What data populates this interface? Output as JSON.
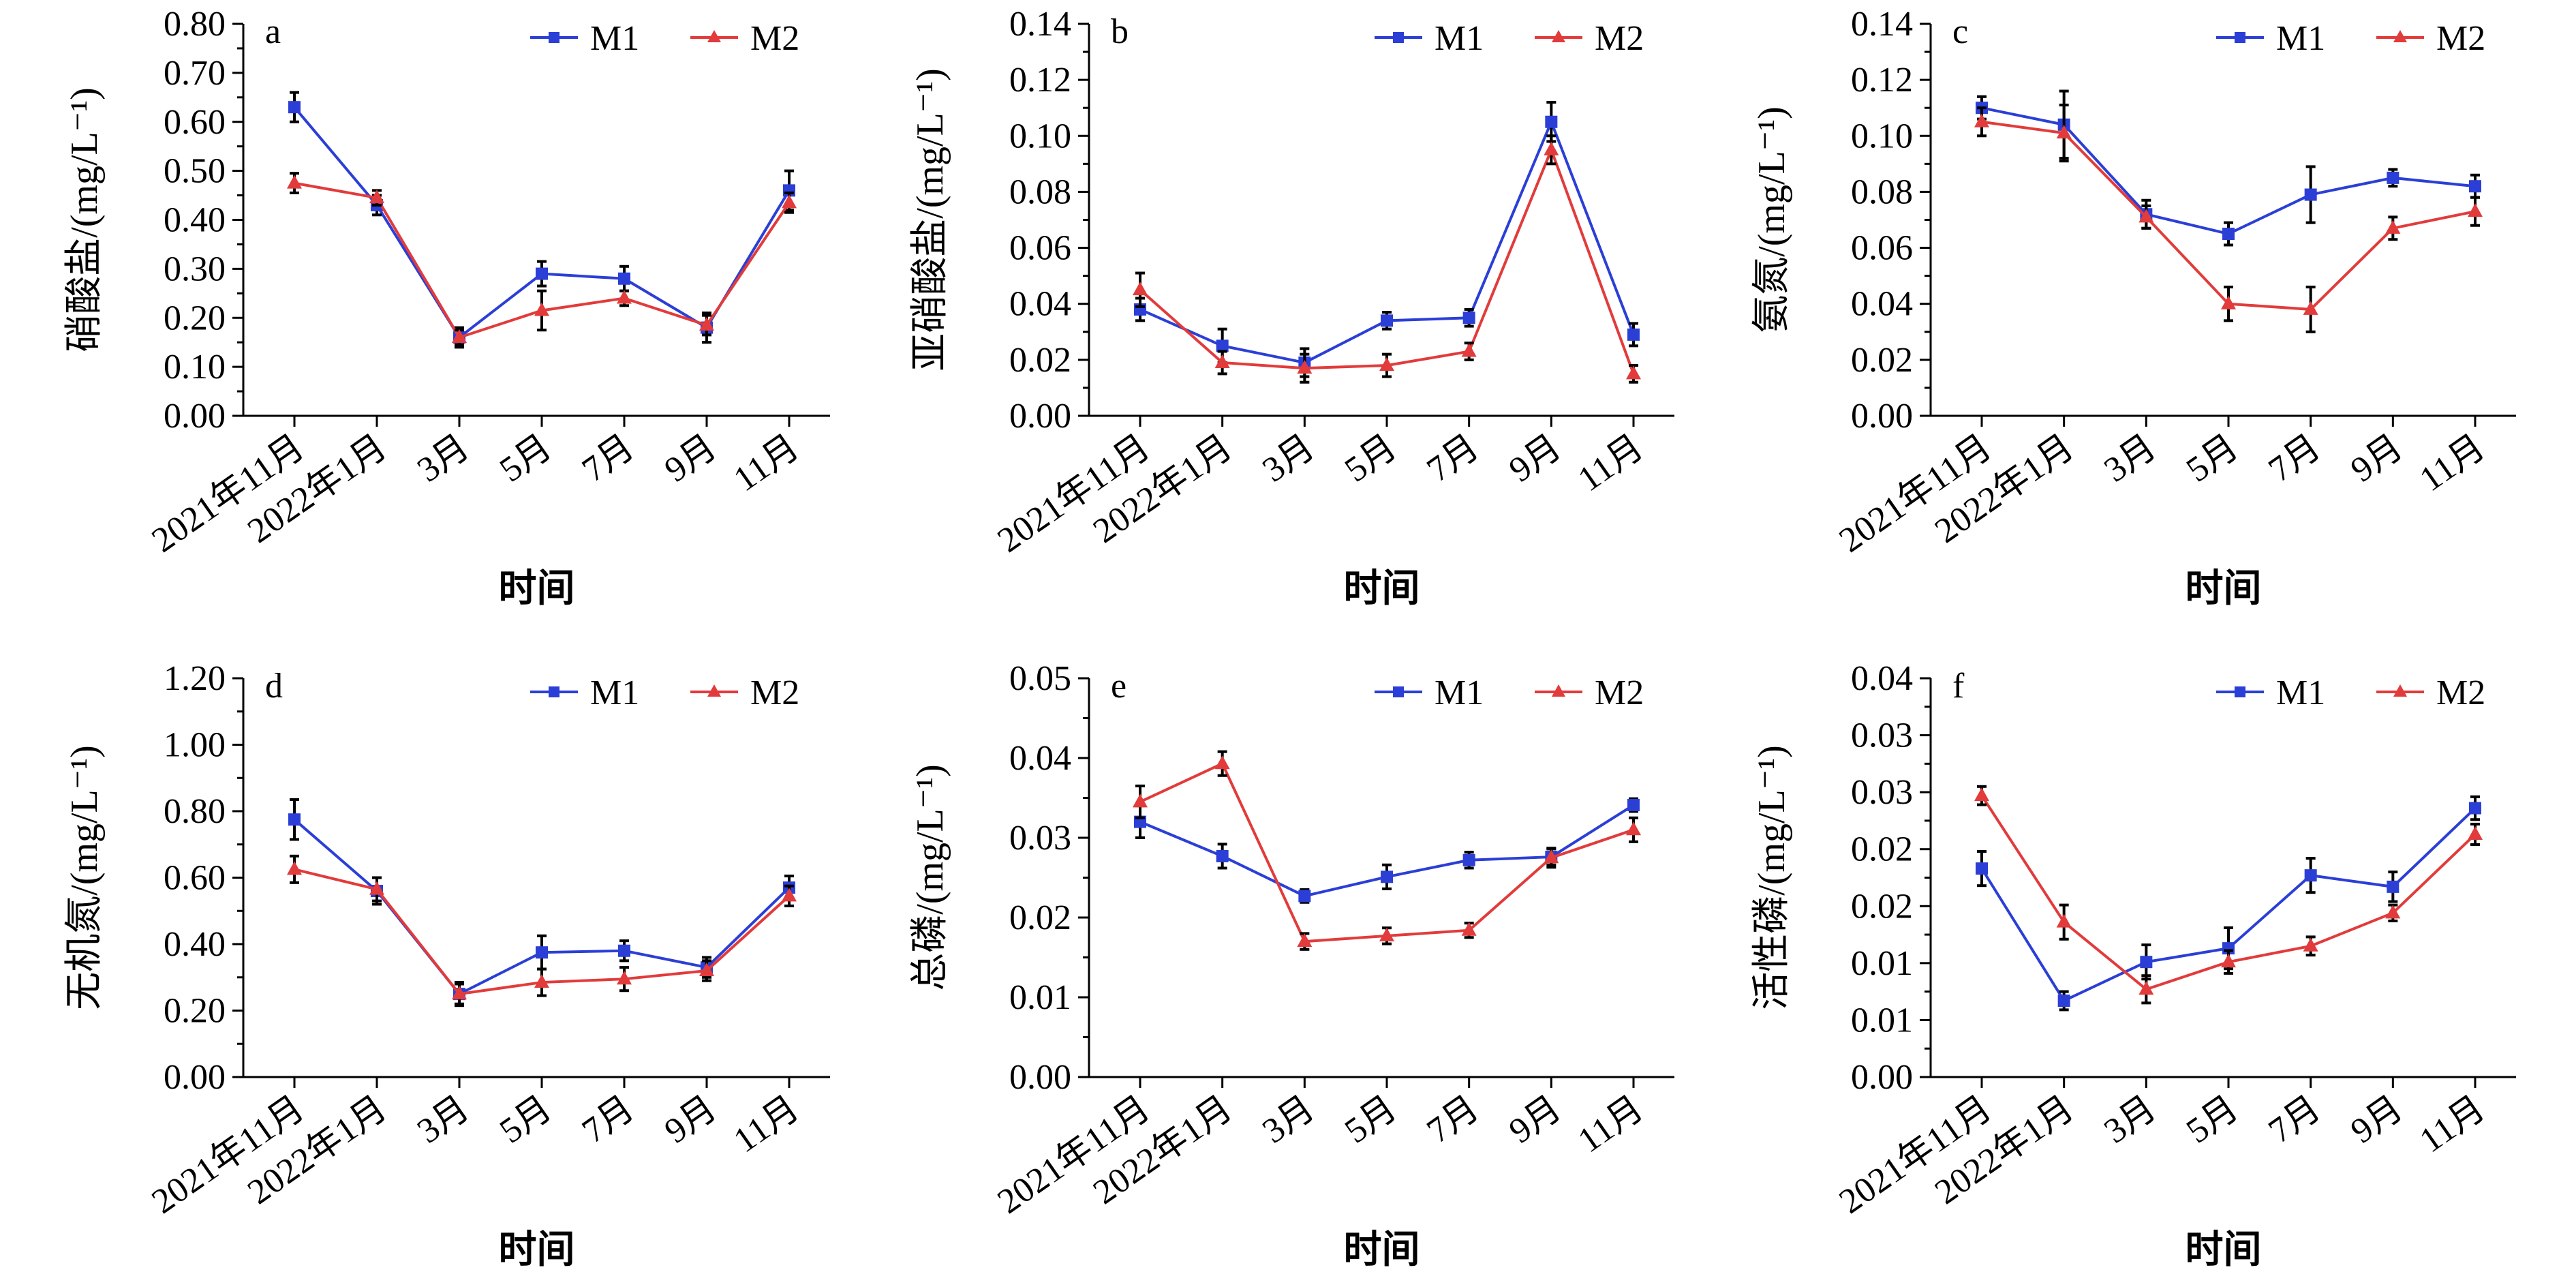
{
  "chart_data": [
    {
      "type": "line",
      "panel": "a",
      "ylabel": "硝酸盐/(mg/L⁻¹)",
      "xlabel": "时间",
      "categories": [
        "2021年11月",
        "2022年1月",
        "3月",
        "5月",
        "7月",
        "9月",
        "11月"
      ],
      "ylim": [
        0,
        0.8
      ],
      "yticks": [
        "0.00",
        "0.10",
        "0.20",
        "0.30",
        "0.40",
        "0.50",
        "0.60",
        "0.70",
        "0.80"
      ],
      "legend_position": "top-right",
      "series": [
        {
          "name": "M1",
          "color": "#2b3fd6",
          "marker": "square",
          "values": [
            0.63,
            0.43,
            0.16,
            0.29,
            0.28,
            0.18,
            0.46
          ],
          "errors": [
            0.03,
            0.02,
            0.02,
            0.025,
            0.025,
            0.03,
            0.04
          ]
        },
        {
          "name": "M2",
          "color": "#e23b3b",
          "marker": "triangle",
          "values": [
            0.475,
            0.445,
            0.16,
            0.215,
            0.24,
            0.185,
            0.435
          ],
          "errors": [
            0.02,
            0.015,
            0.015,
            0.04,
            0.015,
            0.02,
            0.02
          ]
        }
      ]
    },
    {
      "type": "line",
      "panel": "b",
      "ylabel": "亚硝酸盐/(mg/L⁻¹)",
      "xlabel": "时间",
      "categories": [
        "2021年11月",
        "2022年1月",
        "3月",
        "5月",
        "7月",
        "9月",
        "11月"
      ],
      "ylim": [
        0,
        0.14
      ],
      "yticks": [
        "0.00",
        "0.02",
        "0.04",
        "0.06",
        "0.08",
        "0.10",
        "0.12",
        "0.14"
      ],
      "legend_position": "top-right",
      "series": [
        {
          "name": "M1",
          "color": "#2b3fd6",
          "marker": "square",
          "values": [
            0.038,
            0.025,
            0.019,
            0.034,
            0.035,
            0.105,
            0.029
          ],
          "errors": [
            0.004,
            0.006,
            0.005,
            0.003,
            0.003,
            0.007,
            0.004
          ]
        },
        {
          "name": "M2",
          "color": "#e23b3b",
          "marker": "triangle",
          "values": [
            0.045,
            0.019,
            0.017,
            0.018,
            0.023,
            0.095,
            0.015
          ],
          "errors": [
            0.006,
            0.004,
            0.005,
            0.004,
            0.003,
            0.005,
            0.003
          ]
        }
      ]
    },
    {
      "type": "line",
      "panel": "c",
      "ylabel": "氨氮/(mg/L⁻¹)",
      "xlabel": "时间",
      "categories": [
        "2021年11月",
        "2022年1月",
        "3月",
        "5月",
        "7月",
        "9月",
        "11月"
      ],
      "ylim": [
        0,
        0.14
      ],
      "yticks": [
        "0.00",
        "0.02",
        "0.04",
        "0.06",
        "0.08",
        "0.10",
        "0.12",
        "0.14"
      ],
      "legend_position": "top-right",
      "series": [
        {
          "name": "M1",
          "color": "#2b3fd6",
          "marker": "square",
          "values": [
            0.11,
            0.104,
            0.072,
            0.065,
            0.079,
            0.085,
            0.082
          ],
          "errors": [
            0.004,
            0.012,
            0.005,
            0.004,
            0.01,
            0.003,
            0.004
          ]
        },
        {
          "name": "M2",
          "color": "#e23b3b",
          "marker": "triangle",
          "values": [
            0.105,
            0.101,
            0.071,
            0.04,
            0.038,
            0.067,
            0.073
          ],
          "errors": [
            0.005,
            0.01,
            0.004,
            0.006,
            0.008,
            0.004,
            0.005
          ]
        }
      ]
    },
    {
      "type": "line",
      "panel": "d",
      "ylabel": "无机氮/(mg/L⁻¹)",
      "xlabel": "时间",
      "categories": [
        "2021年11月",
        "2022年1月",
        "3月",
        "5月",
        "7月",
        "9月",
        "11月"
      ],
      "ylim": [
        0,
        1.2
      ],
      "yticks": [
        "0.00",
        "0.20",
        "0.40",
        "0.60",
        "0.80",
        "1.00",
        "1.20"
      ],
      "legend_position": "top-right",
      "series": [
        {
          "name": "M1",
          "color": "#2b3fd6",
          "marker": "square",
          "values": [
            0.775,
            0.56,
            0.25,
            0.375,
            0.38,
            0.33,
            0.57
          ],
          "errors": [
            0.06,
            0.04,
            0.03,
            0.05,
            0.03,
            0.03,
            0.035
          ]
        },
        {
          "name": "M2",
          "color": "#e23b3b",
          "marker": "triangle",
          "values": [
            0.625,
            0.565,
            0.25,
            0.285,
            0.295,
            0.32,
            0.545
          ],
          "errors": [
            0.04,
            0.035,
            0.035,
            0.04,
            0.035,
            0.03,
            0.03
          ]
        }
      ]
    },
    {
      "type": "line",
      "panel": "e",
      "ylabel": "总磷/(mg/L⁻¹)",
      "xlabel": "时间",
      "categories": [
        "2021年11月",
        "2022年1月",
        "3月",
        "5月",
        "7月",
        "9月",
        "11月"
      ],
      "ylim": [
        0,
        0.05
      ],
      "yticks": [
        "0.00",
        "0.01",
        "0.02",
        "0.03",
        "0.04",
        "0.05"
      ],
      "legend_position": "top-right",
      "series": [
        {
          "name": "M1",
          "color": "#2b3fd6",
          "marker": "square",
          "values": [
            0.032,
            0.0277,
            0.0227,
            0.0251,
            0.0272,
            0.0276,
            0.0341
          ],
          "errors": [
            0.002,
            0.0015,
            0.0008,
            0.0015,
            0.001,
            0.001,
            0.0008
          ]
        },
        {
          "name": "M2",
          "color": "#e23b3b",
          "marker": "triangle",
          "values": [
            0.0345,
            0.0393,
            0.017,
            0.0177,
            0.0184,
            0.0275,
            0.031
          ],
          "errors": [
            0.002,
            0.0015,
            0.001,
            0.001,
            0.0009,
            0.0012,
            0.0015
          ]
        }
      ]
    },
    {
      "type": "line",
      "panel": "f",
      "ylabel": "活性磷/(mg/L⁻¹)",
      "xlabel": "时间",
      "categories": [
        "2021年11月",
        "2022年1月",
        "3月",
        "5月",
        "7月",
        "9月",
        "11月"
      ],
      "ylim": [
        0,
        0.035
      ],
      "yticks": [
        "0.00",
        "0.01",
        "0.01",
        "0.02",
        "0.02",
        "0.03",
        "0.03",
        "0.04"
      ],
      "legend_position": "top-right",
      "series": [
        {
          "name": "M1",
          "color": "#2b3fd6",
          "marker": "square",
          "values": [
            0.0183,
            0.0067,
            0.0101,
            0.0113,
            0.0177,
            0.0167,
            0.0236
          ],
          "errors": [
            0.0015,
            0.0008,
            0.0015,
            0.0018,
            0.0015,
            0.0013,
            0.001
          ]
        },
        {
          "name": "M2",
          "color": "#e23b3b",
          "marker": "triangle",
          "values": [
            0.0247,
            0.0136,
            0.0077,
            0.0101,
            0.0115,
            0.0144,
            0.0213
          ],
          "errors": [
            0.0008,
            0.0015,
            0.0012,
            0.001,
            0.0008,
            0.0007,
            0.0009
          ]
        }
      ]
    }
  ]
}
